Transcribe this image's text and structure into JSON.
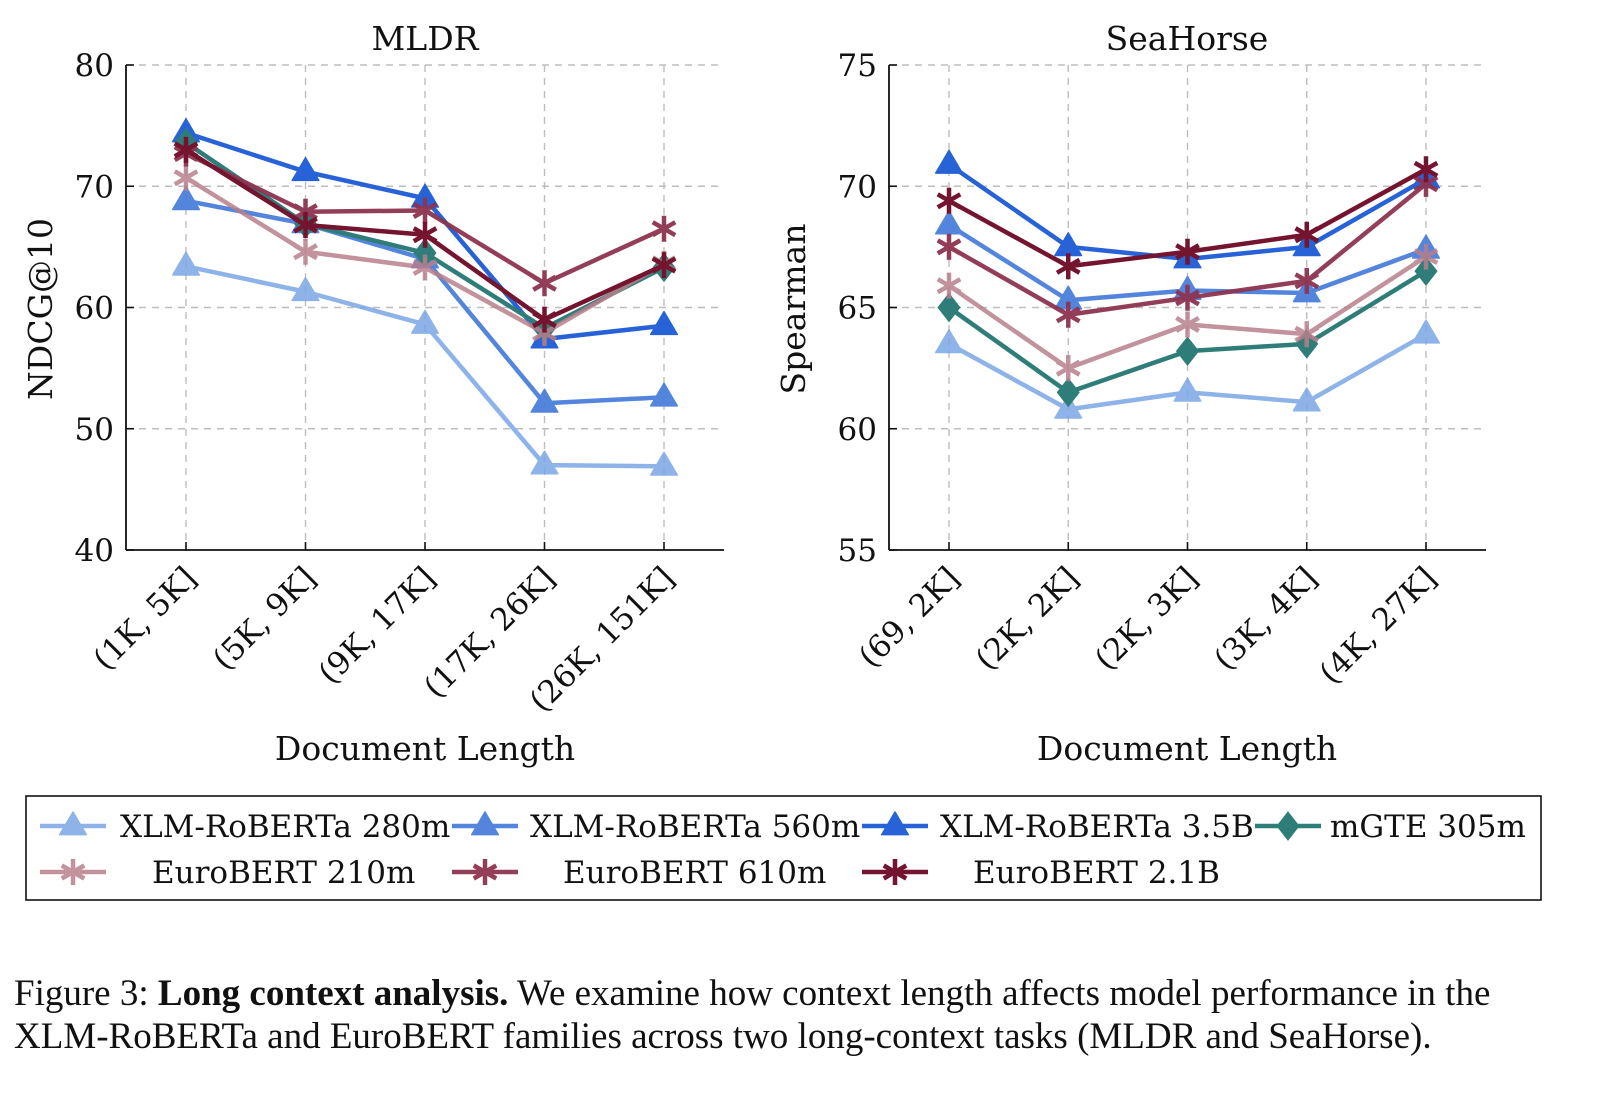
{
  "chart_data": [
    {
      "type": "line",
      "title": "MLDR",
      "xlabel": "Document Length",
      "ylabel": "NDCG@10",
      "categories": [
        "(1K, 5K]",
        "(5K, 9K]",
        "(9K, 17K]",
        "(17K, 26K]",
        "(26K, 151K]"
      ],
      "ylim": [
        40,
        80
      ],
      "yticks": [
        40,
        50,
        60,
        70,
        80
      ],
      "grid": true,
      "series": [
        {
          "name": "XLM-RoBERTa 280m",
          "values": [
            63.4,
            61.3,
            58.6,
            47.0,
            46.9
          ]
        },
        {
          "name": "XLM-RoBERTa 560m",
          "values": [
            68.8,
            66.9,
            64.0,
            52.1,
            52.6
          ]
        },
        {
          "name": "XLM-RoBERTa 3.5B",
          "values": [
            74.4,
            71.2,
            69.0,
            57.4,
            58.5
          ]
        },
        {
          "name": "mGTE 305m",
          "values": [
            73.6,
            66.9,
            64.5,
            58.3,
            63.3
          ]
        },
        {
          "name": "EuroBERT 210m",
          "values": [
            70.7,
            64.6,
            63.3,
            57.9,
            63.6
          ]
        },
        {
          "name": "EuroBERT 610m",
          "values": [
            72.7,
            67.9,
            68.0,
            62.0,
            66.5
          ]
        },
        {
          "name": "EuroBERT 2.1B",
          "values": [
            73.0,
            66.8,
            66.0,
            59.0,
            63.5
          ]
        }
      ]
    },
    {
      "type": "line",
      "title": "SeaHorse",
      "xlabel": "Document Length",
      "ylabel": "Spearman",
      "categories": [
        "(69, 2K]",
        "(2K, 2K]",
        "(2K, 3K]",
        "(3K, 4K]",
        "(4K, 27K]"
      ],
      "ylim": [
        55,
        75
      ],
      "yticks": [
        55,
        60,
        65,
        70,
        75
      ],
      "grid": true,
      "series": [
        {
          "name": "XLM-RoBERTa 280m",
          "values": [
            63.5,
            60.8,
            61.5,
            61.1,
            63.9
          ]
        },
        {
          "name": "XLM-RoBERTa 560m",
          "values": [
            68.4,
            65.3,
            65.7,
            65.6,
            67.4
          ]
        },
        {
          "name": "XLM-RoBERTa 3.5B",
          "values": [
            70.9,
            67.5,
            67.0,
            67.5,
            70.3
          ]
        },
        {
          "name": "mGTE 305m",
          "values": [
            65.0,
            61.5,
            63.2,
            63.5,
            66.5
          ]
        },
        {
          "name": "EuroBERT 210m",
          "values": [
            65.9,
            62.5,
            64.3,
            63.9,
            67.1
          ]
        },
        {
          "name": "EuroBERT 610m",
          "values": [
            67.5,
            64.7,
            65.4,
            66.1,
            70.1
          ]
        },
        {
          "name": "EuroBERT 2.1B",
          "values": [
            69.4,
            66.7,
            67.3,
            68.0,
            70.7
          ]
        }
      ]
    }
  ],
  "series_styles": [
    {
      "color": "#7aa6e6",
      "marker": "triangle",
      "opacity": 0.85
    },
    {
      "color": "#4a7fdc",
      "marker": "triangle",
      "opacity": 0.95
    },
    {
      "color": "#2762d6",
      "marker": "triangle",
      "opacity": 1
    },
    {
      "color": "#2f7d78",
      "marker": "diamond",
      "opacity": 1
    },
    {
      "color": "#b87f8c",
      "marker": "star",
      "opacity": 0.85
    },
    {
      "color": "#8e3451",
      "marker": "star",
      "opacity": 0.95
    },
    {
      "color": "#74142e",
      "marker": "star",
      "opacity": 1
    }
  ],
  "legend": {
    "placement": "bottom",
    "entries": [
      "XLM-RoBERTa 280m",
      "XLM-RoBERTa 560m",
      "XLM-RoBERTa 3.5B",
      "mGTE 305m",
      "EuroBERT 210m",
      "EuroBERT 610m",
      "EuroBERT 2.1B"
    ]
  },
  "caption": {
    "label": "Figure 3:",
    "bold": "Long context analysis.",
    "text": "We examine how context length affects model performance in the XLM-RoBERTa and EuroBERT families across two long-context tasks (MLDR and SeaHorse)."
  }
}
